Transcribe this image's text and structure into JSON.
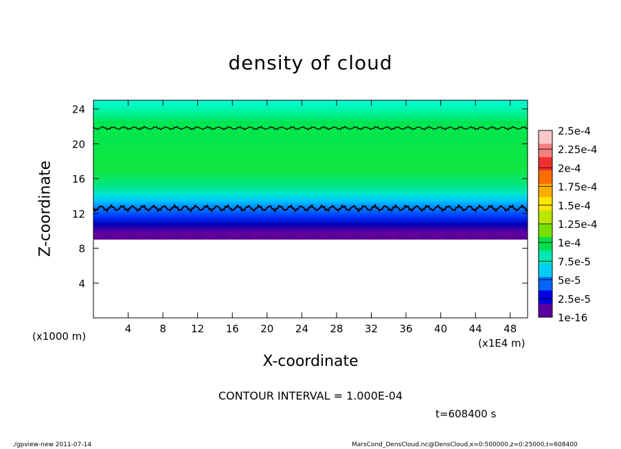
{
  "chart_data": {
    "type": "heatmap",
    "title": "density of cloud",
    "xlabel": "X-coordinate",
    "ylabel": "Z-coordinate",
    "x_unit_label": "(x1E4 m)",
    "y_unit_label": "(x1000 m)",
    "xlim": [
      0,
      50
    ],
    "ylim": [
      0,
      25
    ],
    "x_ticks": [
      4,
      8,
      12,
      16,
      20,
      24,
      28,
      32,
      36,
      40,
      44,
      48
    ],
    "y_ticks": [
      4,
      8,
      12,
      16,
      20,
      24
    ],
    "profile": [
      {
        "z": 25.0,
        "value": 5.5e-05
      },
      {
        "z": 23.5,
        "value": 6.5e-05
      },
      {
        "z": 22.0,
        "value": 8.8e-05
      },
      {
        "z": 21.0,
        "value": 0.000105
      },
      {
        "z": 16.0,
        "value": 0.000112
      },
      {
        "z": 13.5,
        "value": 0.000105
      },
      {
        "z": 12.6,
        "value": 9e-05
      },
      {
        "z": 11.5,
        "value": 7e-05
      },
      {
        "z": 10.8,
        "value": 5e-05
      },
      {
        "z": 10.0,
        "value": 2.5e-05
      },
      {
        "z": 9.4,
        "value": 1e-16
      }
    ],
    "cloud_base_z": 9.0,
    "contour_lines_z": [
      21.8,
      12.6
    ],
    "colorbar": {
      "labels": [
        "2.5e-4",
        "2.25e-4",
        "2e-4",
        "1.75e-4",
        "1.5e-4",
        "1.25e-4",
        "1e-4",
        "7.5e-5",
        "5e-5",
        "2.5e-5",
        "1e-16"
      ],
      "colors": [
        "#f9b4b4",
        "#f47070",
        "#f03a18",
        "#fb7d00",
        "#fcbf00",
        "#f0f000",
        "#9ce600",
        "#56e000",
        "#00e05a",
        "#00e6b4",
        "#00d2f0",
        "#0078ff",
        "#0000ff",
        "#0000b8",
        "#6400a0",
        "#5000a0",
        "#460078"
      ],
      "band_colors_top_to_bottom": [
        "#fbc8c8",
        "#f48080",
        "#f03030",
        "#fc6c00",
        "#fcae00",
        "#fce600",
        "#bce600",
        "#78e000",
        "#00e04c",
        "#00e6b4",
        "#00cdf5",
        "#0064ff",
        "#0000e6",
        "#5a00a0"
      ]
    },
    "contour_interval": "CONTOUR INTERVAL = 1.000E-04",
    "time": "t=608400 s"
  },
  "footer": {
    "left": "./gpview-new   2011-07-14",
    "right": "MarsCond_DensCloud.nc@DensCloud,x=0:500000,z=0:25000,t=608400"
  }
}
